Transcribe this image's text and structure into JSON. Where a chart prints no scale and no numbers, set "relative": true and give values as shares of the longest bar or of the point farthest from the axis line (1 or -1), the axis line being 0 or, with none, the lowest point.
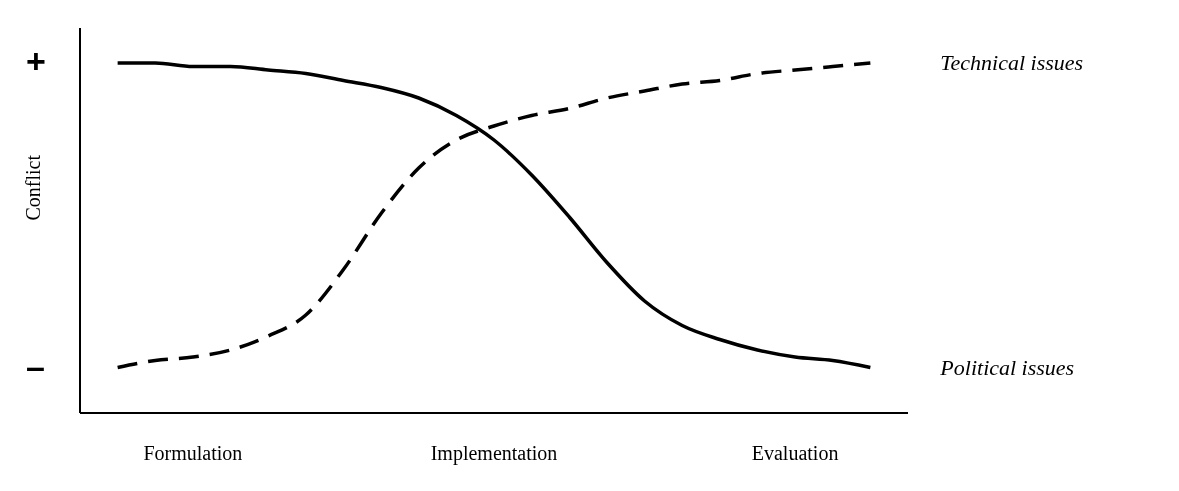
{
  "chart_data": {
    "type": "line",
    "relative": true,
    "ylabel": "Conflict",
    "categories": [
      null,
      null,
      "Formulation",
      null,
      null,
      null,
      null,
      null,
      null,
      null,
      "Implementation",
      null,
      null,
      null,
      null,
      null,
      null,
      null,
      "Evaluation",
      null,
      null
    ],
    "series": [
      {
        "name": "Technical issues",
        "color": "#000000",
        "line_style": "dashed",
        "values": [
          0.13,
          0.15,
          0.16,
          0.18,
          0.22,
          0.28,
          0.41,
          0.57,
          0.7,
          0.78,
          0.82,
          0.85,
          0.87,
          0.9,
          0.92,
          0.94,
          0.95,
          0.97,
          0.98,
          0.99,
          1
        ]
      },
      {
        "name": "Political issues",
        "color": "#000000",
        "line_style": "solid",
        "values": [
          1,
          1,
          0.99,
          0.99,
          0.98,
          0.97,
          0.95,
          0.93,
          0.9,
          0.85,
          0.78,
          0.68,
          0.56,
          0.43,
          0.32,
          0.25,
          0.21,
          0.18,
          0.16,
          0.15,
          0.13
        ]
      }
    ],
    "annotations": [
      "+",
      "–"
    ],
    "grid": false,
    "legend": false,
    "marker": "none"
  }
}
